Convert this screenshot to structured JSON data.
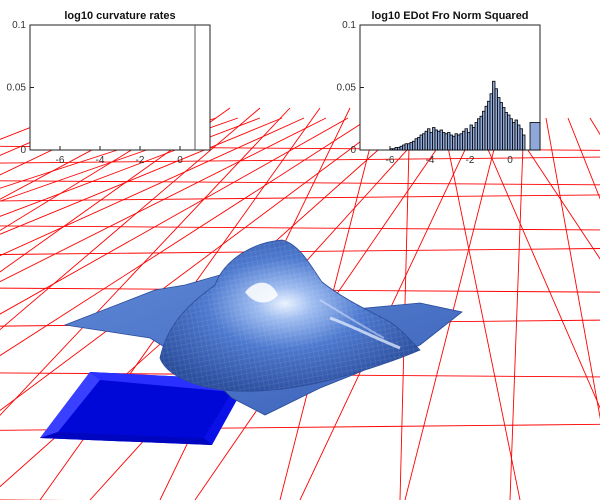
{
  "scene": {
    "floor_grid_color": "#ff0000",
    "surface_color": "#3a66c4",
    "mold_color": "#0a10e8"
  },
  "chart_data": [
    {
      "type": "bar",
      "title": "log10 curvature rates",
      "xlim": [
        -7.5,
        1.5
      ],
      "ylim": [
        0,
        0.1
      ],
      "xticks": [
        -6,
        -4,
        -2,
        0
      ],
      "xtick_labels": [
        "-6",
        "-4",
        "-2",
        "0"
      ],
      "yticks": [
        0,
        0.05,
        0.1
      ],
      "ytick_labels": [
        "0",
        "0.05",
        "0.1"
      ],
      "x": [],
      "values": [],
      "bar_color": "#8fa8d8",
      "marker_line_x": 0.75
    },
    {
      "type": "bar",
      "title": "log10 EDot Fro Norm Squared",
      "xlim": [
        -7.5,
        1.5
      ],
      "ylim": [
        0,
        0.1
      ],
      "xticks": [
        -6,
        -4,
        -2,
        0
      ],
      "xtick_labels": [
        "-6",
        "-4",
        "-2",
        "0"
      ],
      "yticks": [
        0,
        0.05,
        0.1
      ],
      "ytick_labels": [
        "0",
        "0.05",
        "0.1"
      ],
      "bar_color": "#8fa8d8",
      "bin_width": 0.125,
      "x": [
        -6.0,
        -5.875,
        -5.75,
        -5.625,
        -5.5,
        -5.375,
        -5.25,
        -5.125,
        -5.0,
        -4.875,
        -4.75,
        -4.625,
        -4.5,
        -4.375,
        -4.25,
        -4.125,
        -4.0,
        -3.875,
        -3.75,
        -3.625,
        -3.5,
        -3.375,
        -3.25,
        -3.125,
        -3.0,
        -2.875,
        -2.75,
        -2.625,
        -2.5,
        -2.375,
        -2.25,
        -2.125,
        -2.0,
        -1.875,
        -1.75,
        -1.625,
        -1.5,
        -1.375,
        -1.25,
        -1.125,
        -1.0,
        -0.875,
        -0.75,
        -0.625,
        -0.5,
        -0.375,
        -0.25,
        -0.125,
        0.0,
        0.125,
        0.25,
        0.375,
        0.5,
        0.625
      ],
      "values": [
        0.001,
        0.001,
        0.002,
        0.002,
        0.003,
        0.004,
        0.005,
        0.005,
        0.006,
        0.007,
        0.009,
        0.01,
        0.012,
        0.013,
        0.015,
        0.017,
        0.014,
        0.018,
        0.016,
        0.015,
        0.016,
        0.014,
        0.013,
        0.014,
        0.012,
        0.011,
        0.013,
        0.012,
        0.013,
        0.015,
        0.017,
        0.014,
        0.02,
        0.018,
        0.022,
        0.025,
        0.027,
        0.031,
        0.035,
        0.039,
        0.045,
        0.055,
        0.049,
        0.042,
        0.038,
        0.034,
        0.03,
        0.028,
        0.025,
        0.022,
        0.024,
        0.02,
        0.017,
        0.012
      ],
      "outlier_bar": {
        "x0": 1.0,
        "x1": 1.5,
        "value": 0.022
      }
    }
  ]
}
